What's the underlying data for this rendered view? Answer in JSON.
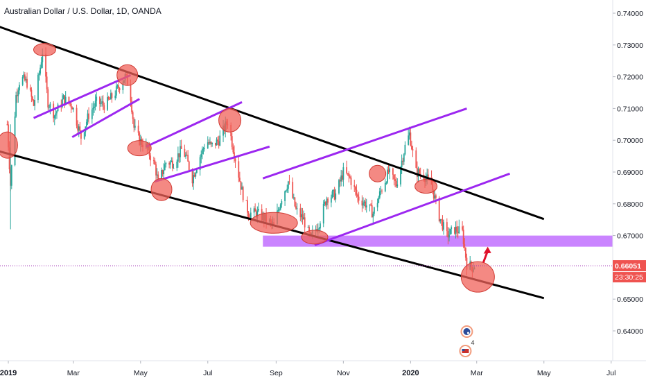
{
  "header": {
    "symbol_title": "Australian Dollar / U.S. Dollar, 1D, OANDA"
  },
  "price_scale": {
    "ticks": [
      "0.74000",
      "0.73000",
      "0.72000",
      "0.71000",
      "0.70000",
      "0.69000",
      "0.68000",
      "0.67000",
      "0.66000",
      "0.65000",
      "0.64000"
    ],
    "tick_values": [
      0.74,
      0.73,
      0.72,
      0.71,
      0.7,
      0.69,
      0.68,
      0.67,
      0.66,
      0.65,
      0.64
    ],
    "last_price_label": "0.66051",
    "countdown_label": "23:30:25",
    "last_price_value": 0.66051
  },
  "time_scale": {
    "labels": [
      "2019",
      "Mar",
      "May",
      "Jul",
      "Sep",
      "Nov",
      "2020",
      "Mar",
      "May",
      "Jul"
    ],
    "label_dates": [
      "2019-01-01",
      "2019-03-01",
      "2019-05-01",
      "2019-07-01",
      "2019-09-01",
      "2019-11-01",
      "2020-01-01",
      "2020-03-01",
      "2020-05-01",
      "2020-07-01"
    ],
    "bold_labels": [
      "2019",
      "2020"
    ]
  },
  "event_badges": {
    "count_label": "4"
  },
  "colors": {
    "up_candle": "#26a69a",
    "down_candle": "#ef5350",
    "channel_line": "#000000",
    "trend_line": "#9c27f0",
    "zone_fill": "#c77dff",
    "highlight_circle": "#f0625a",
    "arrow": "#e0102a",
    "last_price_badge": "#ef5350",
    "countdown_badge": "#ef5350",
    "price_line": "#9c27b0"
  },
  "chart_data": {
    "type": "candlestick",
    "title": "Australian Dollar / U.S. Dollar, 1D, OANDA",
    "x_range": [
      "2018-12-29",
      "2020-07-10"
    ],
    "ylim": [
      0.6305,
      0.7458
    ],
    "grid": false,
    "legend": "none",
    "price_path": [
      [
        "2018-12-31",
        0.705
      ],
      [
        "2019-01-03",
        0.686
      ],
      [
        "2019-01-08",
        0.714
      ],
      [
        "2019-01-12",
        0.72
      ],
      [
        "2019-01-18",
        0.718
      ],
      [
        "2019-01-24",
        0.711
      ],
      [
        "2019-01-30",
        0.723
      ],
      [
        "2019-02-01",
        0.728
      ],
      [
        "2019-02-06",
        0.712
      ],
      [
        "2019-02-12",
        0.708
      ],
      [
        "2019-02-20",
        0.713
      ],
      [
        "2019-02-28",
        0.711
      ],
      [
        "2019-03-08",
        0.701
      ],
      [
        "2019-03-15",
        0.708
      ],
      [
        "2019-03-22",
        0.712
      ],
      [
        "2019-03-30",
        0.711
      ],
      [
        "2019-04-08",
        0.715
      ],
      [
        "2019-04-17",
        0.72
      ],
      [
        "2019-04-21",
        0.717
      ],
      [
        "2019-04-25",
        0.704
      ],
      [
        "2019-04-30",
        0.7
      ],
      [
        "2019-05-06",
        0.698
      ],
      [
        "2019-05-14",
        0.692
      ],
      [
        "2019-05-17",
        0.6865
      ],
      [
        "2019-05-24",
        0.693
      ],
      [
        "2019-05-31",
        0.693
      ],
      [
        "2019-06-07",
        0.697
      ],
      [
        "2019-06-11",
        0.695
      ],
      [
        "2019-06-17",
        0.688
      ],
      [
        "2019-06-24",
        0.695
      ],
      [
        "2019-06-30",
        0.7
      ],
      [
        "2019-07-04",
        0.698
      ],
      [
        "2019-07-11",
        0.7
      ],
      [
        "2019-07-19",
        0.706
      ],
      [
        "2019-07-25",
        0.696
      ],
      [
        "2019-08-01",
        0.684
      ],
      [
        "2019-08-07",
        0.677
      ],
      [
        "2019-08-15",
        0.677
      ],
      [
        "2019-08-23",
        0.675
      ],
      [
        "2019-08-30",
        0.673
      ],
      [
        "2019-09-06",
        0.682
      ],
      [
        "2019-09-12",
        0.687
      ],
      [
        "2019-09-19",
        0.678
      ],
      [
        "2019-09-26",
        0.675
      ],
      [
        "2019-10-02",
        0.669
      ],
      [
        "2019-10-10",
        0.674
      ],
      [
        "2019-10-17",
        0.682
      ],
      [
        "2019-10-25",
        0.683
      ],
      [
        "2019-11-01",
        0.69
      ],
      [
        "2019-11-07",
        0.688
      ],
      [
        "2019-11-14",
        0.682
      ],
      [
        "2019-11-21",
        0.68
      ],
      [
        "2019-11-28",
        0.677
      ],
      [
        "2019-12-05",
        0.684
      ],
      [
        "2019-12-12",
        0.69
      ],
      [
        "2019-12-19",
        0.686
      ],
      [
        "2019-12-27",
        0.698
      ],
      [
        "2019-12-31",
        0.702
      ],
      [
        "2020-01-06",
        0.69
      ],
      [
        "2020-01-13",
        0.689
      ],
      [
        "2020-01-20",
        0.686
      ],
      [
        "2020-01-27",
        0.676
      ],
      [
        "2020-02-03",
        0.67
      ],
      [
        "2020-02-10",
        0.672
      ],
      [
        "2020-02-17",
        0.671
      ],
      [
        "2020-02-21",
        0.661
      ],
      [
        "2020-02-26",
        0.66
      ],
      [
        "2020-02-28",
        0.6605
      ]
    ],
    "channel_lines": [
      {
        "from": [
          "2018-12-24",
          0.7357
        ],
        "to": [
          "2020-05-01",
          0.6752
        ]
      },
      {
        "from": [
          "2018-12-24",
          0.6965
        ],
        "to": [
          "2020-05-01",
          0.6503
        ]
      }
    ],
    "trend_lines": [
      {
        "from": [
          "2019-01-24",
          0.707
        ],
        "to": [
          "2019-04-22",
          0.7205
        ]
      },
      {
        "from": [
          "2019-02-28",
          0.701
        ],
        "to": [
          "2019-04-30",
          0.713
        ]
      },
      {
        "from": [
          "2019-05-06",
          0.698
        ],
        "to": [
          "2019-08-01",
          0.712
        ]
      },
      {
        "from": [
          "2019-05-14",
          0.687
        ],
        "to": [
          "2019-08-26",
          0.698
        ]
      },
      {
        "from": [
          "2019-08-20",
          0.688
        ],
        "to": [
          "2020-02-21",
          0.71
        ]
      },
      {
        "from": [
          "2019-10-06",
          0.667
        ],
        "to": [
          "2020-03-31",
          0.6895
        ]
      }
    ],
    "zone": {
      "from": "2019-08-20",
      "to": "2020-07-10",
      "low": 0.6665,
      "high": 0.67
    },
    "highlights": [
      {
        "date": "2019-02-03",
        "price": 0.7285
      },
      {
        "date": "2018-12-31",
        "price": 0.6985
      },
      {
        "date": "2019-04-19",
        "price": 0.7205
      },
      {
        "date": "2019-04-30",
        "price": 0.6975
      },
      {
        "date": "2019-05-20",
        "price": 0.6845
      },
      {
        "date": "2019-07-21",
        "price": 0.7063
      },
      {
        "date": "2019-08-30",
        "price": 0.674
      },
      {
        "date": "2019-10-06",
        "price": 0.6695
      },
      {
        "date": "2019-12-02",
        "price": 0.6895
      },
      {
        "date": "2020-01-15",
        "price": 0.6855
      },
      {
        "date": "2020-03-02",
        "price": 0.657
      }
    ],
    "arrow": {
      "from": [
        "2020-03-07",
        0.6615
      ],
      "to": [
        "2020-03-11",
        0.6665
      ]
    }
  }
}
